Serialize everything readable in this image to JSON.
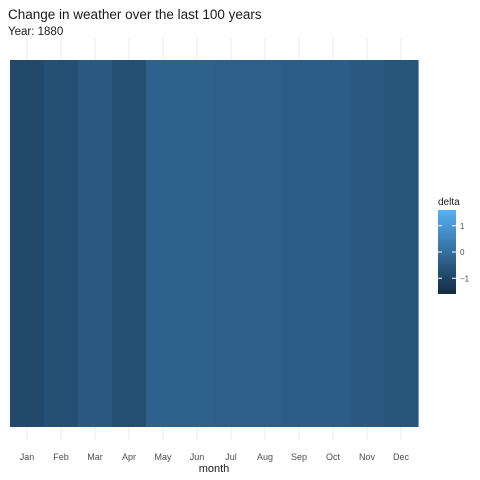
{
  "chart_data": {
    "type": "heatmap",
    "title": "Change in weather over the last 100 years",
    "subtitle": "Year: 1880",
    "xlabel": "month",
    "ylabel": "",
    "categories": [
      "Jan",
      "Feb",
      "Mar",
      "Apr",
      "May",
      "Jun",
      "Jul",
      "Aug",
      "Sep",
      "Oct",
      "Nov",
      "Dec"
    ],
    "values": [
      -0.9,
      -0.75,
      -0.5,
      -0.75,
      -0.3,
      -0.3,
      -0.35,
      -0.35,
      -0.4,
      -0.4,
      -0.5,
      -0.6
    ],
    "grid": true,
    "legend": {
      "title": "delta",
      "position": "right",
      "ticks": [
        1,
        0,
        -1
      ],
      "range": [
        -1.6,
        1.6
      ],
      "color_low": "#132B43",
      "color_high": "#56B1F7"
    }
  }
}
